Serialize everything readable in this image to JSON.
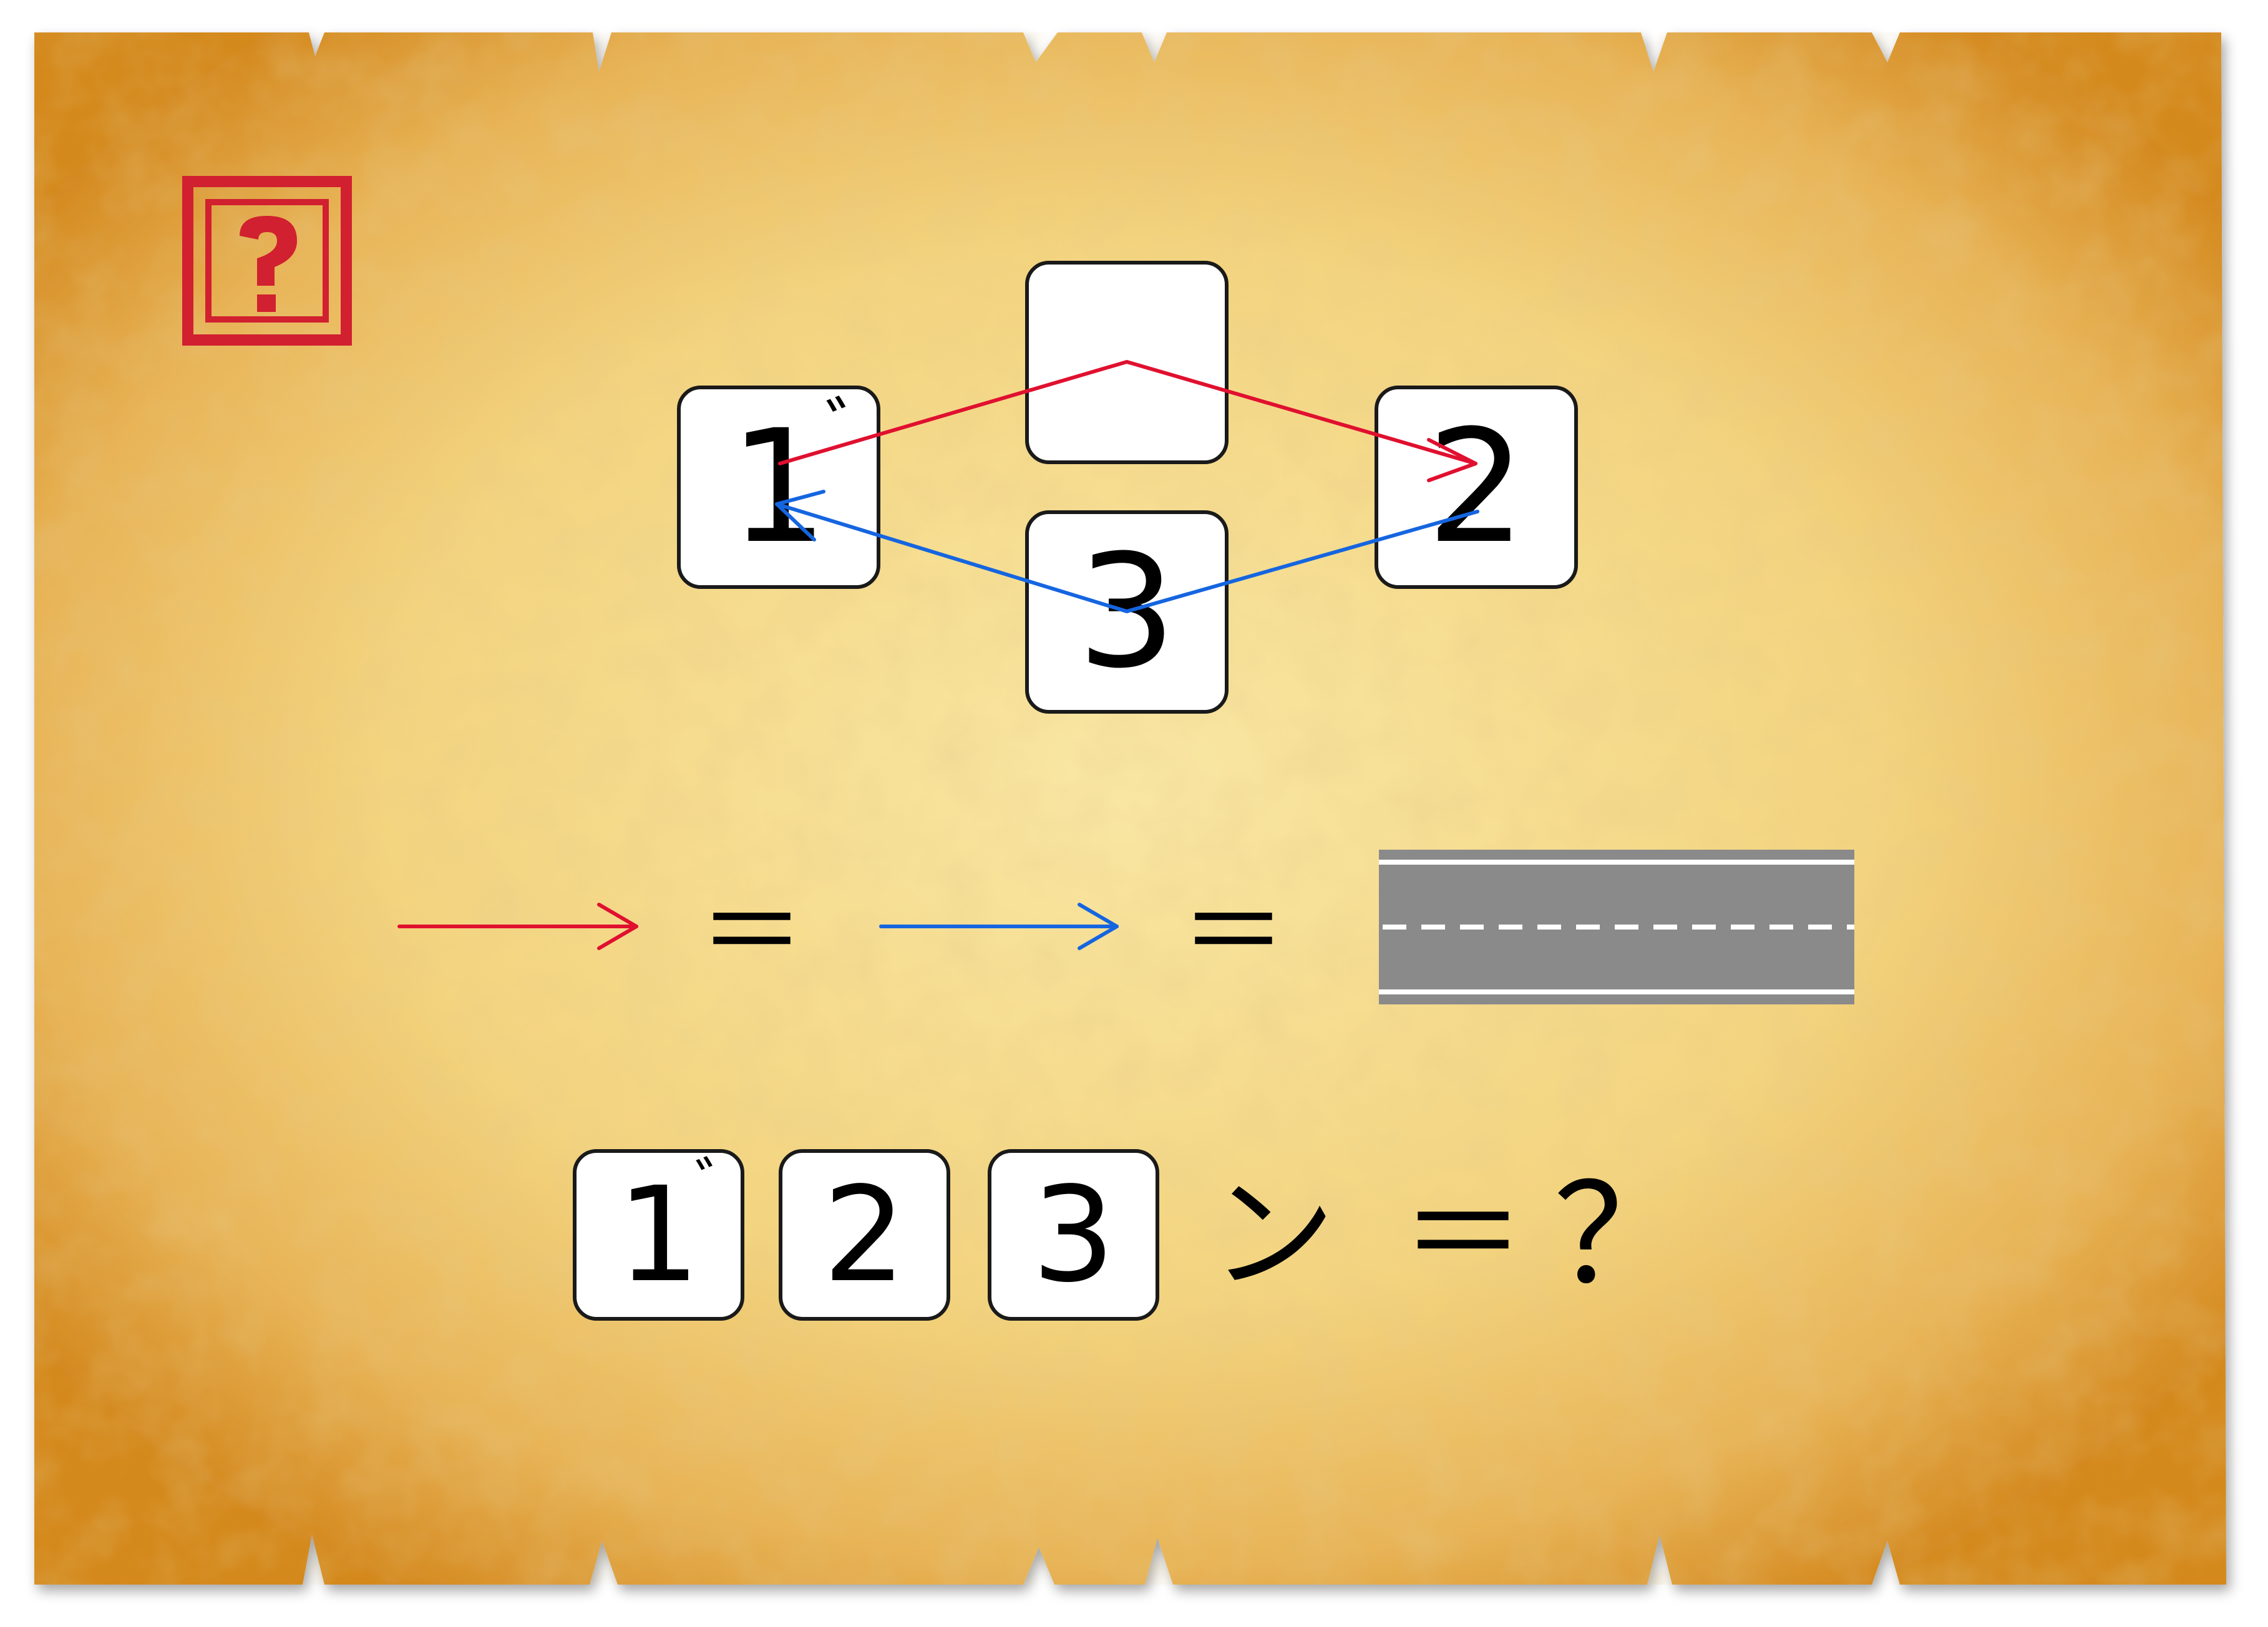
{
  "colors": {
    "red_arrow": "#e0102f",
    "blue_arrow": "#1565e0",
    "stamp": "#d1202f",
    "road_asphalt": "#8a8a8a",
    "road_line": "#ffffff",
    "parchment_light": "#f6dc8c",
    "parchment_edge": "#d4891f"
  },
  "stamp": {
    "icon": "question-mark-stamp-icon",
    "glyph": "?"
  },
  "diagram": {
    "tiles": {
      "left": {
        "number": "1",
        "dakuten": "゛"
      },
      "top": {
        "number": ""
      },
      "right": {
        "number": "2"
      },
      "bottom": {
        "number": "3"
      }
    },
    "red_path": "left → top → right",
    "blue_path": "right → bottom → left"
  },
  "equation": {
    "symbol_1": "＝",
    "symbol_2": "＝",
    "road_icon": "road-icon"
  },
  "question": {
    "tiles": [
      {
        "number": "1",
        "dakuten": "゛"
      },
      {
        "number": "2"
      },
      {
        "number": "3"
      }
    ],
    "kana": "ン",
    "equals": "＝",
    "mark": "？"
  }
}
